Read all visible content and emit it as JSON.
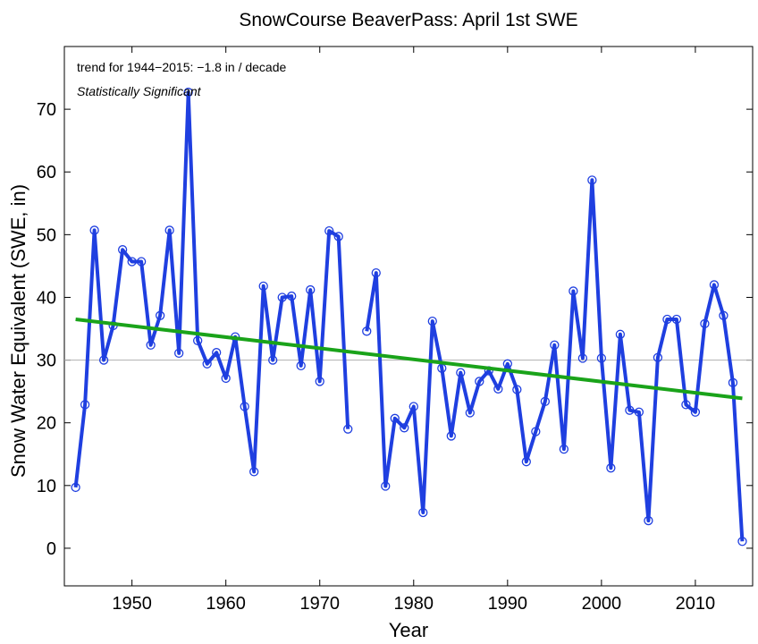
{
  "chart_data": {
    "type": "line",
    "title": "SnowCourse BeaverPass: April 1st SWE",
    "xlabel": "Year",
    "ylabel": "Snow Water Equivalent (SWE, in)",
    "xlim": [
      1942.8,
      2016.1
    ],
    "ylim": [
      -6,
      80
    ],
    "xticks": [
      1950,
      1960,
      1970,
      1980,
      1990,
      2000,
      2010
    ],
    "yticks": [
      0,
      10,
      20,
      30,
      40,
      50,
      60,
      70
    ],
    "annotation": "trend for 1944−2015: −1.8 in / decade",
    "significance": "Statistically Significant",
    "reference_line": 30,
    "colors": {
      "series": "#1f3fe0",
      "trend": "#1aa31a",
      "reference": "#b0b0b0"
    },
    "series": [
      {
        "name": "April 1st SWE",
        "x": [
          1944,
          1945,
          1946,
          1947,
          1948,
          1949,
          1950,
          1951,
          1952,
          1953,
          1954,
          1955,
          1956,
          1957,
          1958,
          1959,
          1960,
          1961,
          1962,
          1963,
          1964,
          1965,
          1966,
          1967,
          1968,
          1969,
          1970,
          1971,
          1972,
          1973,
          1974,
          1975,
          1976,
          1977,
          1978,
          1979,
          1980,
          1981,
          1982,
          1983,
          1984,
          1985,
          1986,
          1987,
          1988,
          1989,
          1990,
          1991,
          1992,
          1993,
          1994,
          1995,
          1996,
          1997,
          1998,
          1999,
          2000,
          2001,
          2002,
          2003,
          2004,
          2005,
          2006,
          2007,
          2008,
          2009,
          2010,
          2011,
          2012,
          2013,
          2014,
          2015
        ],
        "values": [
          9.7,
          22.9,
          50.7,
          30.0,
          35.5,
          47.6,
          45.7,
          45.7,
          32.4,
          37.1,
          50.7,
          31.1,
          72.7,
          33.1,
          29.4,
          31.2,
          27.1,
          33.7,
          22.6,
          12.2,
          41.8,
          30.0,
          40.0,
          40.2,
          29.1,
          41.2,
          26.6,
          50.6,
          49.7,
          19.0,
          null,
          34.6,
          43.9,
          9.9,
          20.7,
          19.2,
          22.6,
          5.7,
          36.2,
          28.7,
          17.9,
          28.0,
          21.6,
          26.6,
          28.3,
          25.4,
          29.4,
          25.3,
          13.8,
          18.6,
          23.4,
          32.4,
          15.8,
          41.0,
          30.3,
          58.7,
          30.3,
          12.8,
          34.1,
          22.0,
          21.7,
          4.4,
          30.4,
          36.5,
          36.5,
          22.9,
          21.7,
          35.8,
          42.0,
          37.1,
          26.4,
          1.1
        ]
      }
    ],
    "trend": {
      "x": [
        1944,
        2015
      ],
      "values": [
        36.5,
        23.9
      ]
    }
  }
}
